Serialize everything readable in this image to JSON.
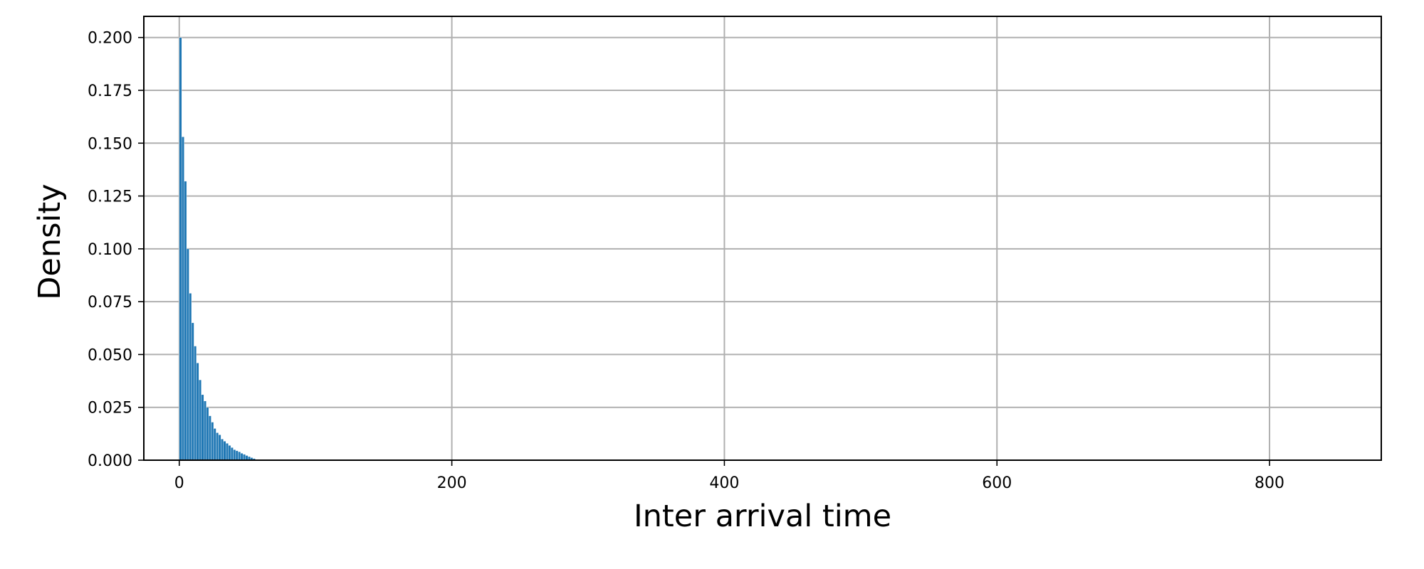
{
  "chart_data": {
    "type": "bar",
    "title": "",
    "xlabel": "Inter arrival time",
    "ylabel": "Density",
    "xlim": [
      -26,
      882
    ],
    "ylim": [
      0,
      0.21
    ],
    "xticks": [
      0,
      200,
      400,
      600,
      800
    ],
    "xtick_labels": [
      "0",
      "200",
      "400",
      "600",
      "800"
    ],
    "yticks": [
      0,
      0.025,
      0.05,
      0.075,
      0.1,
      0.125,
      0.15,
      0.175,
      0.2
    ],
    "ytick_labels": [
      "0.000",
      "0.025",
      "0.050",
      "0.075",
      "0.100",
      "0.125",
      "0.150",
      "0.175",
      "0.200"
    ],
    "grid": true,
    "bar_color": "#1f77b4",
    "bin_width": 1.8,
    "x": [
      0,
      1.8,
      3.6,
      5.4,
      7.2,
      9.0,
      10.8,
      12.6,
      14.4,
      16.2,
      18.0,
      19.8,
      21.6,
      23.4,
      25.2,
      27.0,
      28.8,
      30.6,
      32.4,
      34.2,
      36.0,
      37.8,
      39.6,
      41.4,
      43.2,
      45.0,
      46.8,
      48.6,
      50.4,
      52.2,
      54.0
    ],
    "values": [
      0.2,
      0.153,
      0.132,
      0.1,
      0.079,
      0.065,
      0.054,
      0.046,
      0.038,
      0.031,
      0.028,
      0.025,
      0.021,
      0.018,
      0.015,
      0.013,
      0.012,
      0.01,
      0.009,
      0.008,
      0.007,
      0.006,
      0.005,
      0.0045,
      0.004,
      0.0033,
      0.0028,
      0.0022,
      0.0017,
      0.0012,
      0.0008
    ]
  }
}
